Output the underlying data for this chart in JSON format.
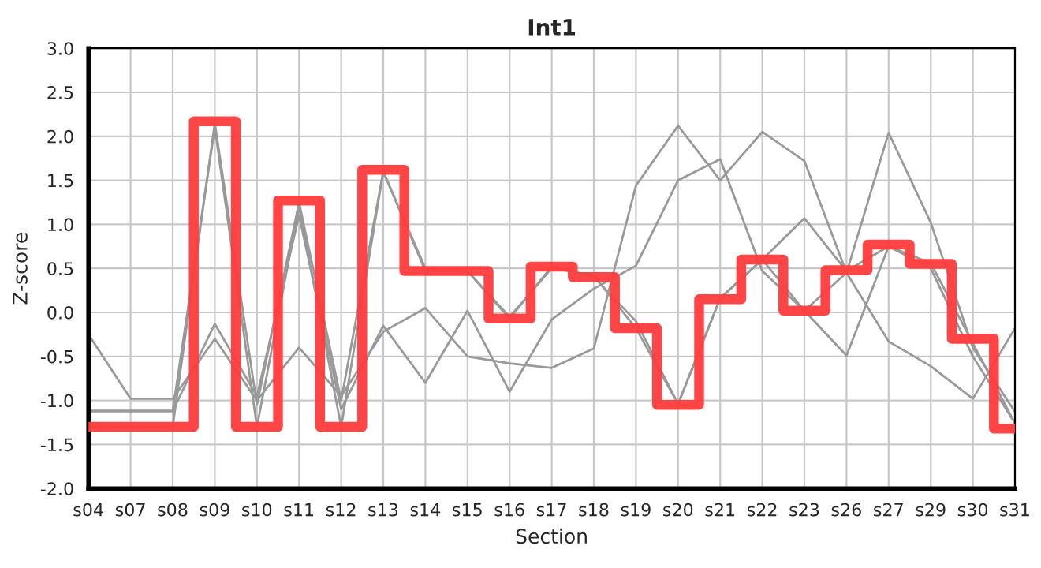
{
  "chart_data": {
    "type": "line",
    "title": "Int1",
    "xlabel": "Section",
    "ylabel": "Z-score",
    "categories": [
      "s04",
      "s07",
      "s08",
      "s09",
      "s10",
      "s11",
      "s12",
      "s13",
      "s14",
      "s15",
      "s16",
      "s17",
      "s18",
      "s19",
      "s20",
      "s21",
      "s22",
      "s23",
      "s26",
      "s27",
      "s29",
      "s30",
      "s31"
    ],
    "ylim": [
      -2.0,
      3.0
    ],
    "yticks": [
      {
        "value": -2.0,
        "label": "-2.0"
      },
      {
        "value": -1.5,
        "label": "-1.5"
      },
      {
        "value": -1.0,
        "label": "-1.0"
      },
      {
        "value": -0.5,
        "label": "-0.5"
      },
      {
        "value": 0.0,
        "label": "0.0"
      },
      {
        "value": 0.5,
        "label": "0.5"
      },
      {
        "value": 1.0,
        "label": "1.0"
      },
      {
        "value": 1.5,
        "label": "1.5"
      },
      {
        "value": 2.0,
        "label": "2.0"
      },
      {
        "value": 2.5,
        "label": "2.5"
      },
      {
        "value": 3.0,
        "label": "3.0"
      }
    ],
    "grid": true,
    "legend": false,
    "marker": "none",
    "line_style": "solid",
    "series": [
      {
        "color": "#999999",
        "values": [
          -0.25,
          -0.98,
          -0.98,
          -0.3,
          -1.0,
          -0.4,
          -0.95,
          -0.22,
          0.05,
          -0.5,
          -0.58,
          -0.63,
          -0.41,
          1.44,
          2.12,
          1.5,
          2.05,
          1.72,
          0.45,
          -0.33,
          -0.61,
          -0.98,
          -0.18
        ]
      },
      {
        "color": "#999999",
        "values": [
          -1.12,
          -1.12,
          -1.12,
          2.1,
          -1.3,
          1.2,
          -1.3,
          1.6,
          0.5,
          0.47,
          -0.05,
          0.5,
          0.42,
          -0.18,
          -1.04,
          0.16,
          0.6,
          1.07,
          0.47,
          0.75,
          0.56,
          -0.35,
          -1.26
        ]
      },
      {
        "color": "#999999",
        "values": [
          -1.12,
          -1.12,
          -1.12,
          -0.13,
          -0.95,
          1.1,
          -1.1,
          -0.15,
          -0.8,
          0.02,
          -0.9,
          -0.08,
          0.27,
          0.53,
          1.5,
          1.74,
          0.47,
          0.02,
          0.45,
          2.04,
          1.02,
          -0.4,
          -1.13
        ]
      },
      {
        "color": "#999999",
        "values": [
          -1.3,
          -1.3,
          -1.3,
          2.15,
          -1.05,
          1.25,
          -1.0,
          1.6,
          0.47,
          0.47,
          -0.07,
          0.52,
          0.4,
          -0.1,
          -1.04,
          0.16,
          0.6,
          0.02,
          -0.49,
          0.75,
          0.5,
          -0.5,
          -1.26
        ]
      },
      {
        "type": "step",
        "color": "#ff3b3b",
        "values": [
          -1.3,
          -1.3,
          -1.3,
          2.17,
          -1.3,
          1.27,
          -1.3,
          1.62,
          0.47,
          0.47,
          -0.07,
          0.52,
          0.4,
          -0.18,
          -1.05,
          0.15,
          0.6,
          0.02,
          0.48,
          0.77,
          0.55,
          -0.3,
          -1.32
        ]
      }
    ]
  }
}
